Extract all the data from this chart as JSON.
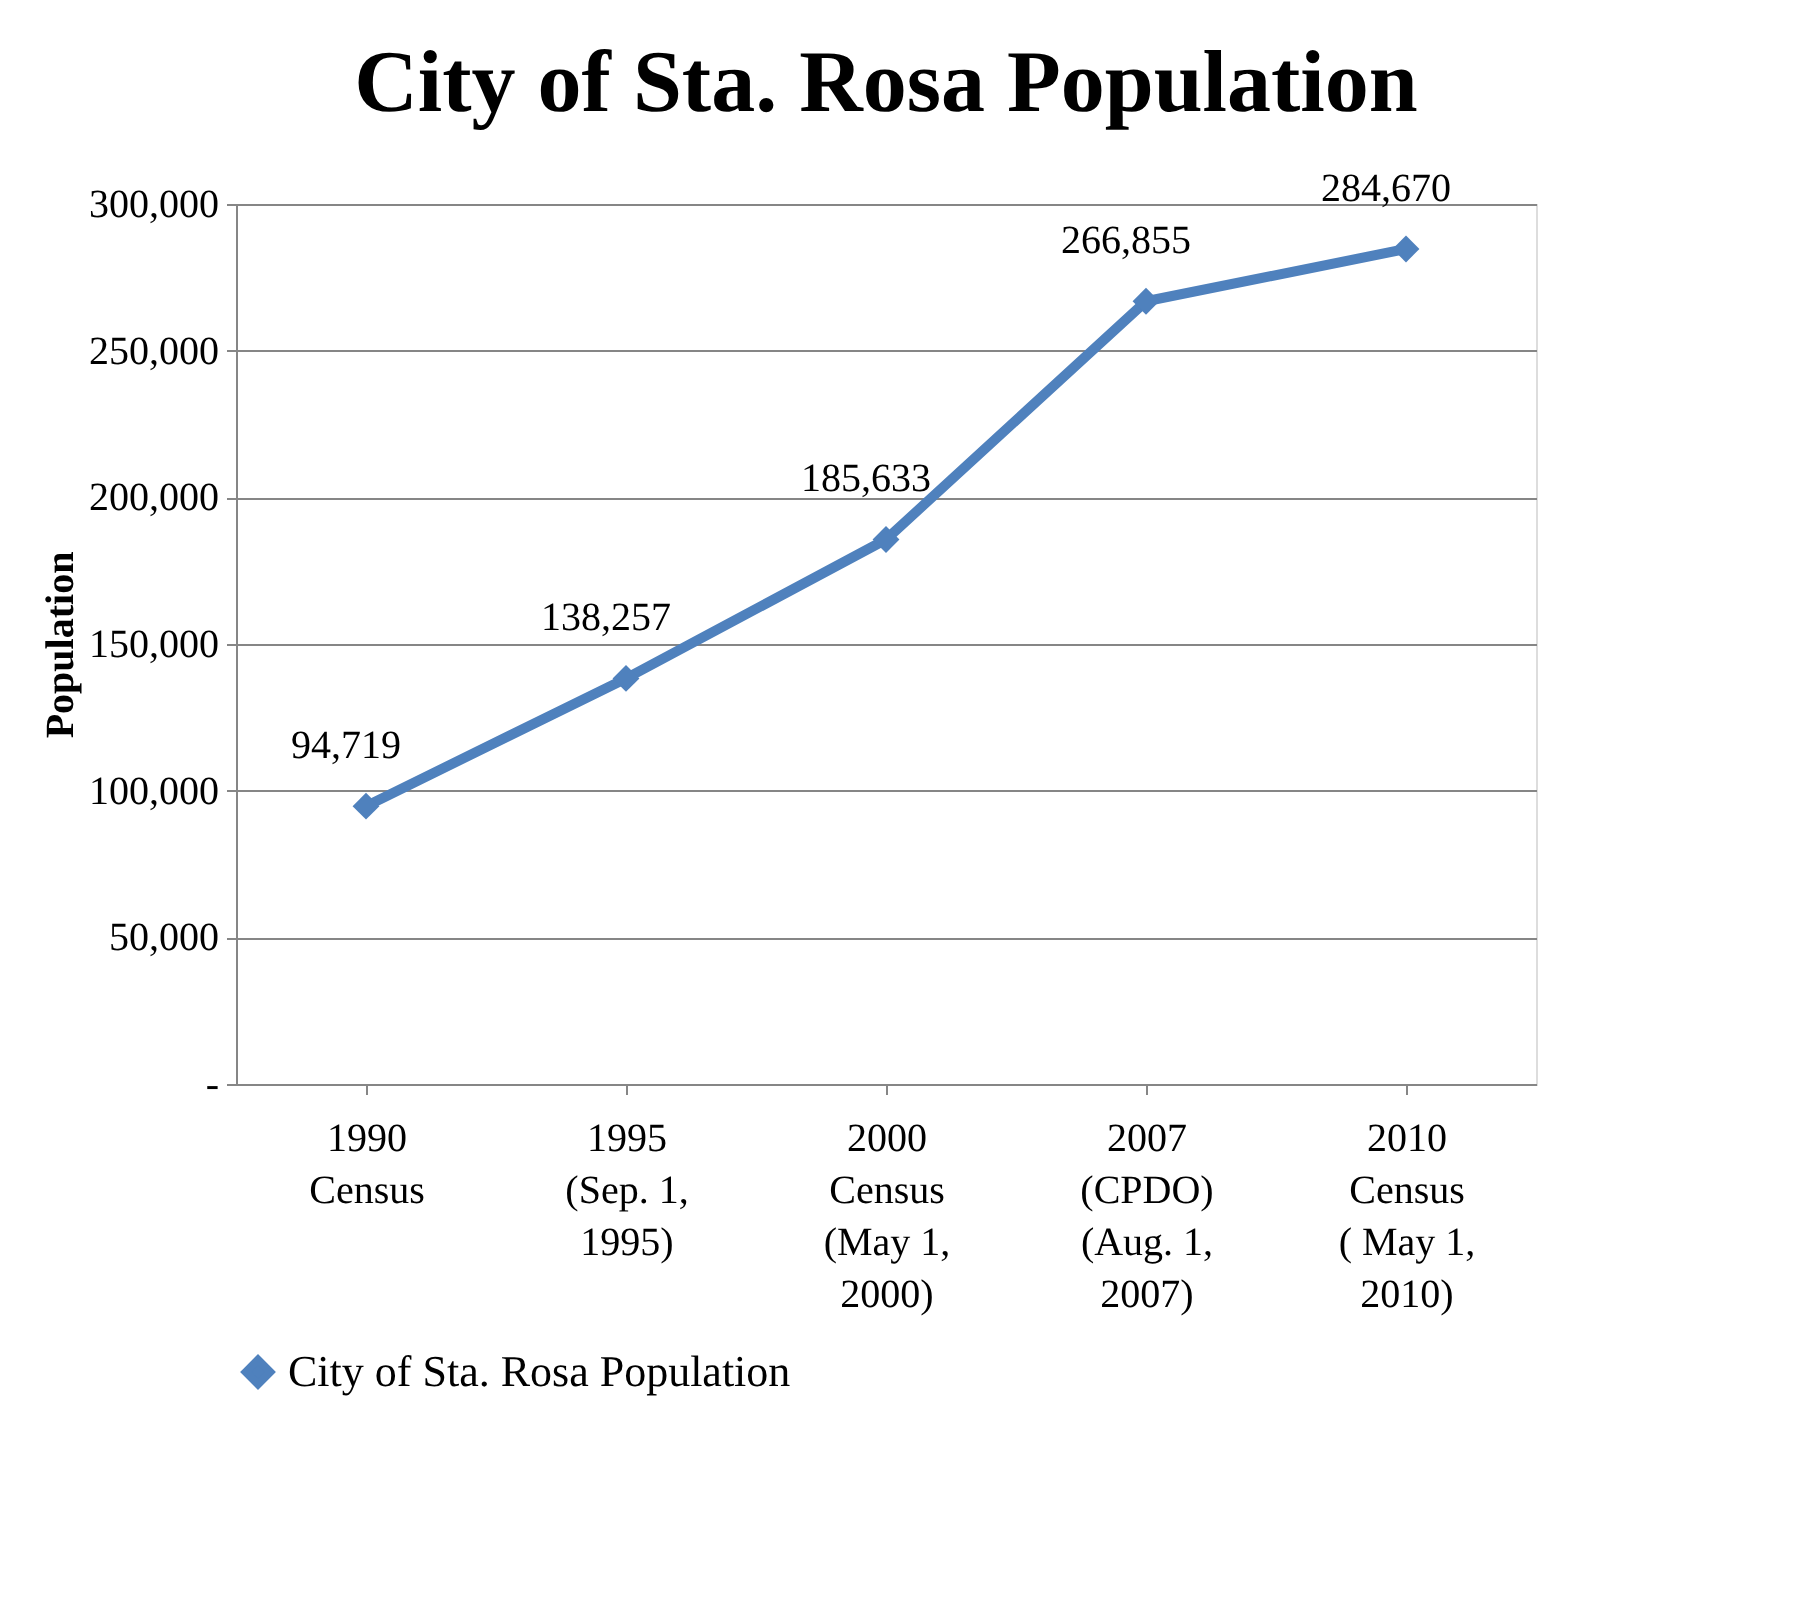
{
  "chart_data": {
    "type": "line",
    "title": "City of Sta. Rosa Population",
    "ylabel": "Population",
    "categories": [
      "1990 Census",
      "1995 (Sep. 1, 1995)",
      "2000 Census (May 1, 2000)",
      "2007 (CPDO) (Aug. 1, 2007)",
      "2010 Census ( May 1, 2010)"
    ],
    "series": [
      {
        "name": "City of Sta. Rosa Population",
        "color": "#4f81bd",
        "values": [
          94719,
          138257,
          185633,
          266855,
          284670
        ],
        "value_labels": [
          "94,719",
          "138,257",
          "185,633",
          "266,855",
          "284,670"
        ]
      }
    ],
    "ylim": [
      0,
      300000
    ],
    "yticks": [
      {
        "value": 0,
        "label": "-"
      },
      {
        "value": 50000,
        "label": "50,000"
      },
      {
        "value": 100000,
        "label": "100,000"
      },
      {
        "value": 150000,
        "label": "150,000"
      },
      {
        "value": 200000,
        "label": "200,000"
      },
      {
        "value": 250000,
        "label": "250,000"
      },
      {
        "value": 300000,
        "label": "300,000"
      }
    ],
    "grid": "y",
    "legend": "bottom",
    "marker": "diamond",
    "line_style": "solid"
  }
}
